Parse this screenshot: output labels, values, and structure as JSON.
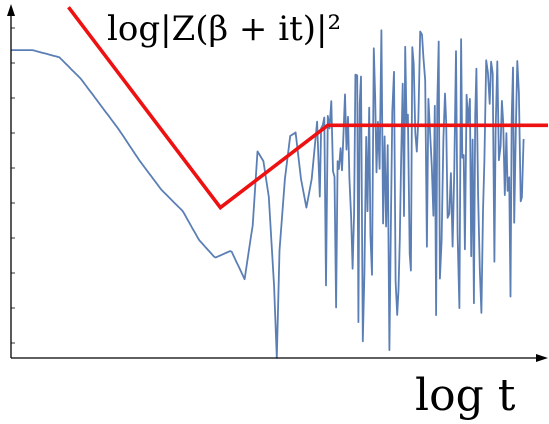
{
  "chart_data": {
    "type": "line",
    "title": "log|Z(β + it)|²",
    "xlabel": "log t",
    "ylabel": "",
    "grid": false,
    "legend": "none",
    "xlim": [
      0,
      1
    ],
    "ylim": [
      0,
      1
    ],
    "series": [
      {
        "color": "#5b7fb5",
        "style": "oscillating",
        "x": [
          0.0,
          0.04,
          0.09,
          0.13,
          0.16,
          0.2,
          0.24,
          0.28,
          0.32,
          0.35,
          0.38,
          0.41,
          0.435,
          0.45,
          0.46
        ],
        "y": [
          0.86,
          0.86,
          0.84,
          0.78,
          0.72,
          0.64,
          0.55,
          0.47,
          0.41,
          0.33,
          0.28,
          0.3,
          0.22,
          0.37,
          0.6
        ]
      },
      {
        "color": "#ee1111",
        "style": "piecewise",
        "x": [
          0.107,
          0.39,
          0.59,
          1.0
        ],
        "y": [
          0.98,
          0.42,
          0.65,
          0.65
        ]
      }
    ]
  }
}
